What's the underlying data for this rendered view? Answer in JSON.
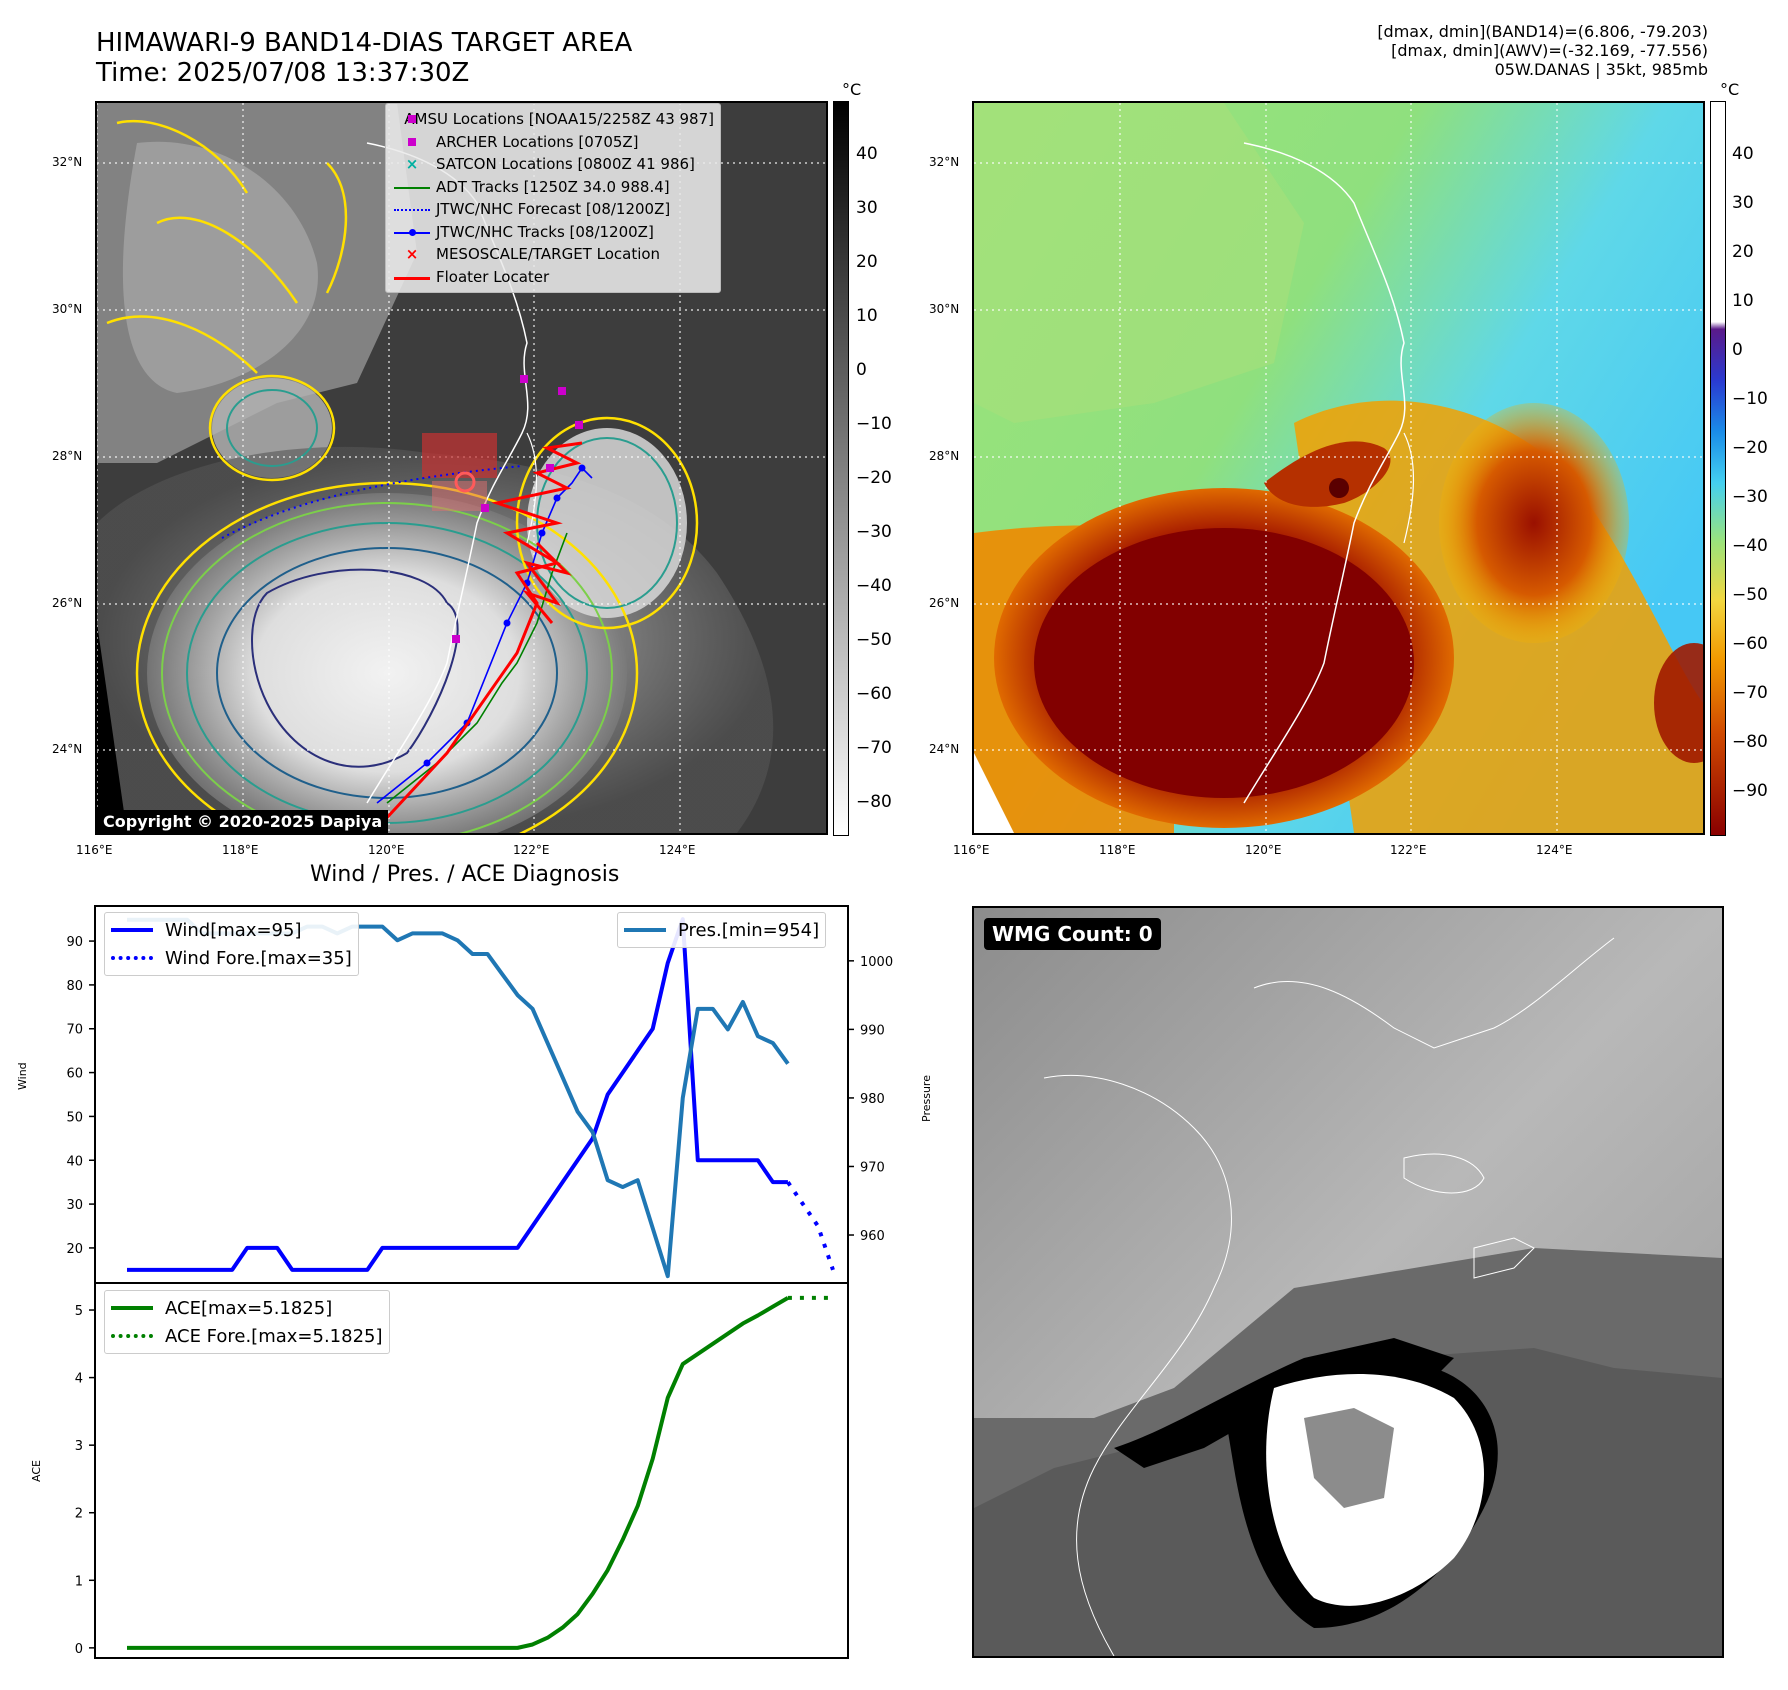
{
  "header": {
    "title_line1": "HIMAWARI-9 BAND14-DIAS TARGET AREA",
    "title_line2": "Time: 2025/07/08 13:37:30Z",
    "info_line1": "[dmax, dmin](BAND14)=(6.806, -79.203)",
    "info_line2": "[dmax, dmin](AWV)=(-32.169, -77.556)",
    "info_line3": "05W.DANAS | 35kt, 985mb"
  },
  "map_left": {
    "lat_labels": [
      "32°N",
      "30°N",
      "28°N",
      "26°N",
      "24°N"
    ],
    "lon_labels": [
      "116°E",
      "118°E",
      "120°E",
      "122°E",
      "124°E"
    ],
    "colorbar_unit": "°C",
    "colorbar_ticks": [
      "40",
      "30",
      "20",
      "10",
      "0",
      "−10",
      "−20",
      "−30",
      "−40",
      "−50",
      "−60",
      "−70",
      "−80"
    ],
    "copyright": "Copyright © 2020-2025 Dapiya",
    "legend": [
      {
        "label": "AMSU Locations [NOAA15/2258Z 43 987]",
        "symbol": "square",
        "color": "#cc00cc"
      },
      {
        "label": "ARCHER Locations [0705Z]",
        "symbol": "square",
        "color": "#cc00cc"
      },
      {
        "label": "SATCON Locations [0800Z 41 986]",
        "symbol": "x",
        "color": "#00b0a0"
      },
      {
        "label": "ADT Tracks [1250Z 34.0 988.4]",
        "symbol": "line",
        "color": "#008000"
      },
      {
        "label": "JTWC/NHC Forecast [08/1200Z]",
        "symbol": "dotted",
        "color": "#0000ff"
      },
      {
        "label": "JTWC/NHC Tracks [08/1200Z]",
        "symbol": "line-dot",
        "color": "#0000ff"
      },
      {
        "label": "MESOSCALE/TARGET Location",
        "symbol": "x",
        "color": "#ff0000"
      },
      {
        "label": "Floater Locater",
        "symbol": "line",
        "color": "#ff0000"
      }
    ]
  },
  "map_right": {
    "lat_labels": [
      "32°N",
      "30°N",
      "28°N",
      "26°N",
      "24°N"
    ],
    "lon_labels": [
      "116°E",
      "118°E",
      "120°E",
      "122°E",
      "124°E"
    ],
    "colorbar_unit": "°C",
    "colorbar_ticks": [
      "40",
      "30",
      "20",
      "10",
      "0",
      "−10",
      "−20",
      "−30",
      "−40",
      "−50",
      "−60",
      "−70",
      "−80",
      "−90"
    ]
  },
  "diag": {
    "title": "Wind / Pres. / ACE Diagnosis",
    "wind_ylabel": "Wind",
    "pres_ylabel": "Pressure",
    "ace_ylabel": "ACE",
    "wind_legend": [
      "Wind[max=95]",
      "Wind Fore.[max=35]"
    ],
    "pres_legend": "Pres.[min=954]",
    "ace_legend": [
      "ACE[max=5.1825]",
      "ACE Fore.[max=5.1825]"
    ]
  },
  "wmg": {
    "label": "WMG Count: 0"
  },
  "colors": {
    "wind": "#0000ff",
    "pressure": "#1f77b4",
    "ace": "#008000"
  },
  "chart_data": [
    {
      "type": "line",
      "title": "Wind / Pres. / ACE Diagnosis",
      "ylabel": "Wind",
      "ylim": [
        12,
        98
      ],
      "yticks": [
        20,
        30,
        40,
        50,
        60,
        70,
        80,
        90
      ],
      "series": [
        {
          "name": "Wind[max=95]",
          "x": [
            0,
            1,
            2,
            3,
            4,
            5,
            6,
            7,
            8,
            9,
            10,
            11,
            12,
            13,
            14,
            15,
            16,
            17,
            18,
            19,
            20,
            21,
            22,
            23,
            24,
            25,
            26,
            27,
            28,
            29,
            30,
            31,
            32,
            33,
            34,
            35,
            36,
            37,
            38,
            39,
            40,
            41,
            42,
            43,
            44
          ],
          "values": [
            15,
            15,
            15,
            15,
            15,
            15,
            15,
            15,
            20,
            20,
            20,
            15,
            15,
            15,
            15,
            15,
            15,
            20,
            20,
            20,
            20,
            20,
            20,
            20,
            20,
            20,
            20,
            25,
            30,
            35,
            40,
            45,
            55,
            60,
            65,
            70,
            85,
            95,
            40,
            40,
            40,
            40,
            40,
            35,
            35
          ]
        },
        {
          "name": "Wind Fore.[max=35]",
          "x": [
            44,
            45,
            46,
            47
          ],
          "values": [
            35,
            30,
            25,
            15
          ]
        }
      ]
    },
    {
      "type": "line",
      "ylabel": "Pressure",
      "ylim": [
        953,
        1008
      ],
      "yticks": [
        960,
        970,
        980,
        990,
        1000
      ],
      "series": [
        {
          "name": "Pres.[min=954]",
          "x": [
            0,
            1,
            2,
            3,
            4,
            5,
            6,
            7,
            8,
            9,
            10,
            11,
            12,
            13,
            14,
            15,
            16,
            17,
            18,
            19,
            20,
            21,
            22,
            23,
            24,
            25,
            26,
            27,
            28,
            29,
            30,
            31,
            32,
            33,
            34,
            35,
            36,
            37,
            38,
            39,
            40,
            41,
            42,
            43,
            44
          ],
          "values": [
            1006,
            1006,
            1006,
            1006,
            1006,
            1004,
            1004,
            1004,
            1004,
            1004,
            1004,
            1004,
            1005,
            1005,
            1004,
            1005,
            1005,
            1005,
            1003,
            1004,
            1004,
            1004,
            1003,
            1001,
            1001,
            998,
            995,
            993,
            988,
            983,
            978,
            975,
            968,
            967,
            968,
            961,
            954,
            980,
            993,
            993,
            990,
            994,
            989,
            988,
            985
          ]
        }
      ]
    },
    {
      "type": "line",
      "ylabel": "ACE",
      "ylim": [
        -0.15,
        5.4
      ],
      "yticks": [
        0,
        1,
        2,
        3,
        4,
        5
      ],
      "series": [
        {
          "name": "ACE[max=5.1825]",
          "x": [
            0,
            5,
            10,
            15,
            20,
            25,
            26,
            27,
            28,
            29,
            30,
            31,
            32,
            33,
            34,
            35,
            36,
            37,
            38,
            39,
            40,
            41,
            42,
            43,
            44
          ],
          "values": [
            0,
            0,
            0,
            0,
            0,
            0,
            0,
            0.05,
            0.15,
            0.3,
            0.5,
            0.8,
            1.15,
            1.6,
            2.1,
            2.8,
            3.7,
            4.2,
            4.35,
            4.5,
            4.65,
            4.8,
            4.92,
            5.05,
            5.18
          ]
        },
        {
          "name": "ACE Fore.[max=5.1825]",
          "x": [
            44,
            47
          ],
          "values": [
            5.18,
            5.18
          ]
        }
      ]
    }
  ]
}
